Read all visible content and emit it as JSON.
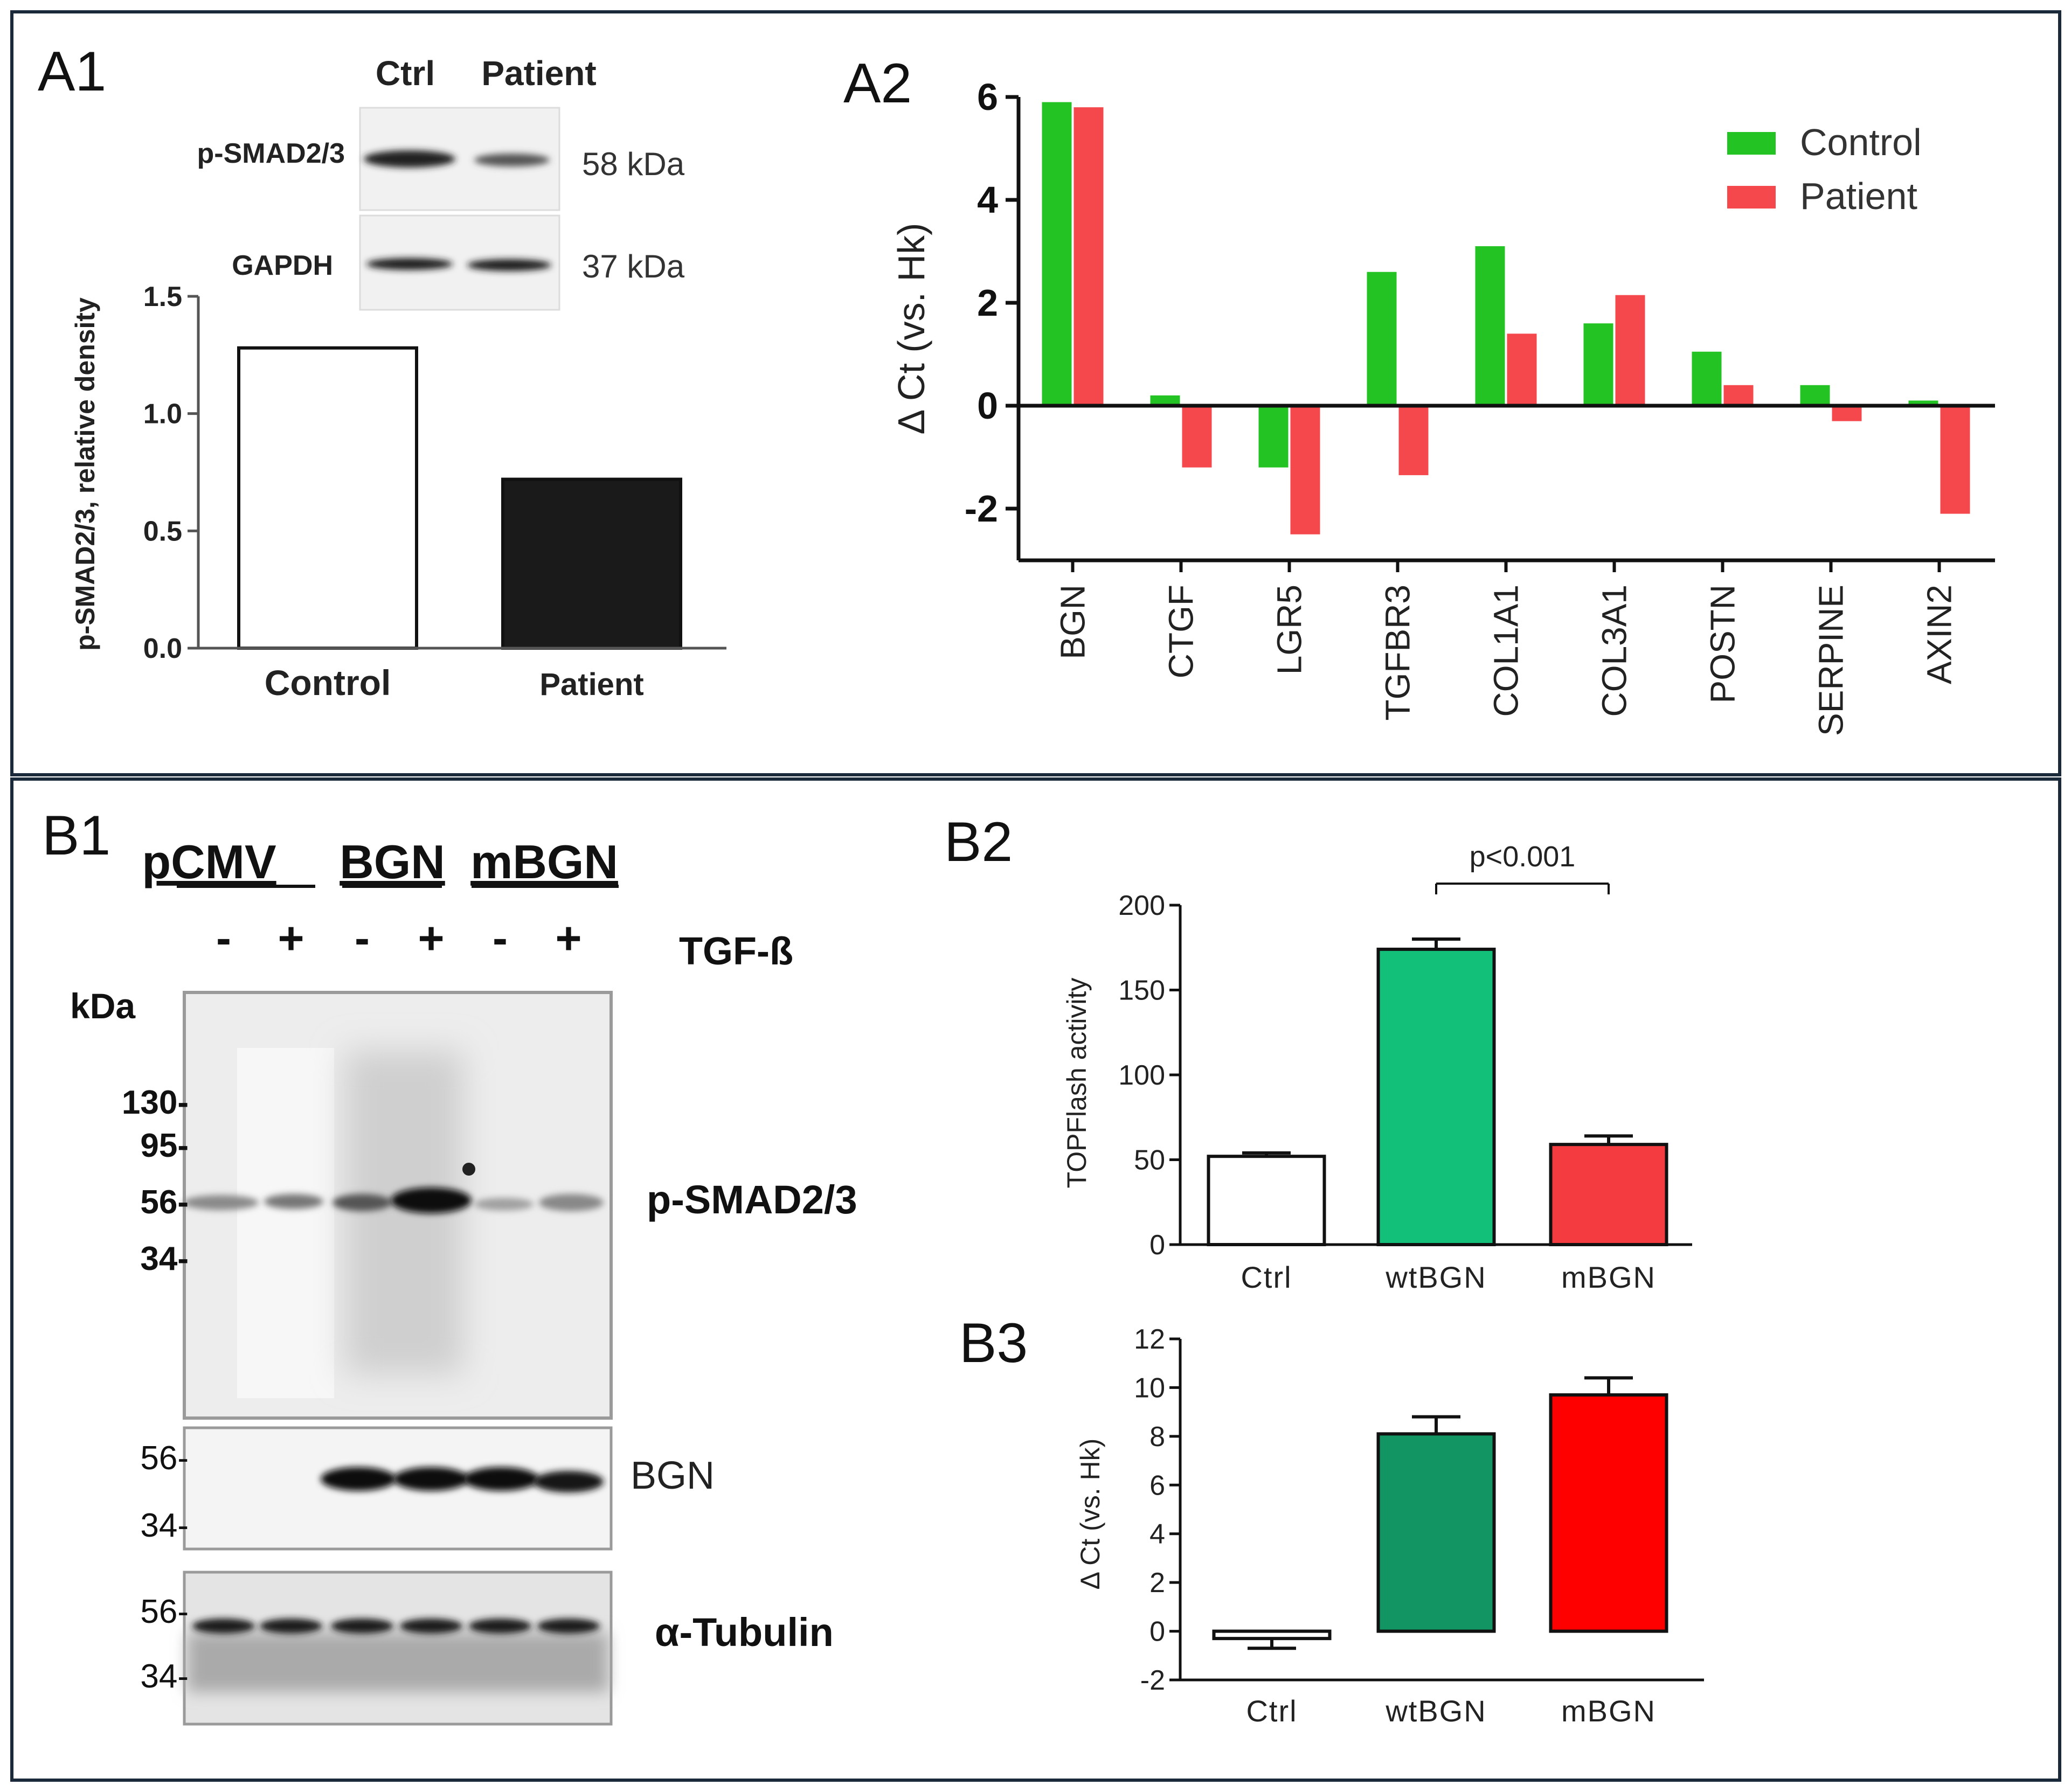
{
  "panels": {
    "a1": "A1",
    "a2": "A2",
    "b1": "B1",
    "b2": "B2",
    "b3": "B3"
  },
  "a1_blot": {
    "lanes": [
      "Ctrl",
      "Patient"
    ],
    "rows": [
      {
        "label": "p-SMAD2/3",
        "kda": "58 kDa"
      },
      {
        "label": "GAPDH",
        "kda": "37 kDa"
      }
    ]
  },
  "b1_blot": {
    "groups": [
      "pCMV",
      "BGN",
      "mBGN"
    ],
    "treatment_signs": [
      "-",
      "+",
      "-",
      "+",
      "-",
      "+"
    ],
    "treatment_label": "TGF-ß",
    "kda_label": "kDa",
    "psmad_markers": [
      "130-",
      "95-",
      "56-",
      "34-"
    ],
    "psmad_label": "p-SMAD2/3",
    "bgn_markers": [
      "56-",
      "34-"
    ],
    "bgn_label": "BGN",
    "tubulin_markers": [
      "56-",
      "34-"
    ],
    "tubulin_label": "α-Tubulin"
  },
  "chart_data": [
    {
      "id": "A1",
      "type": "bar",
      "categories": [
        "Control",
        "Patient"
      ],
      "values": [
        1.28,
        0.72
      ],
      "colors": [
        "#ffffff",
        "#1a1a1a"
      ],
      "ylabel": "p-SMAD2/3, relative density",
      "ylim": [
        0,
        1.5
      ],
      "yticks": [
        0.0,
        0.5,
        1.0,
        1.5
      ],
      "ytick_labels": [
        "0.0",
        "0.5",
        "1.0",
        "1.5"
      ],
      "grid": false
    },
    {
      "id": "A2",
      "type": "bar",
      "categories": [
        "BGN",
        "CTGF",
        "LGR5",
        "TGFBR3",
        "COL1A1",
        "COL3A1",
        "POSTN",
        "SERPINE",
        "AXIN2"
      ],
      "series": [
        {
          "name": "Control",
          "color": "#22c322",
          "values": [
            5.9,
            0.2,
            -1.2,
            2.6,
            3.1,
            1.6,
            1.05,
            0.4,
            0.1
          ]
        },
        {
          "name": "Patient",
          "color": "#f5484d",
          "values": [
            5.8,
            -1.2,
            -2.5,
            -1.35,
            1.4,
            2.15,
            0.4,
            -0.3,
            -2.1
          ]
        }
      ],
      "ylabel": "Δ Ct (vs. Hk)",
      "ylim": [
        -3,
        6
      ],
      "yticks": [
        -2,
        0,
        2,
        4,
        6
      ],
      "ytick_labels": [
        "-2",
        "0",
        "2",
        "4",
        "6"
      ],
      "legend": "top-right",
      "grid": false
    },
    {
      "id": "B2",
      "type": "bar",
      "categories": [
        "Ctrl",
        "wtBGN",
        "mBGN"
      ],
      "values": [
        52,
        174,
        59
      ],
      "errors": [
        2,
        6,
        5
      ],
      "colors": [
        "#ffffff",
        "#12c07a",
        "#f43c40"
      ],
      "ylabel": "TOPFlash activity",
      "ylim": [
        0,
        200
      ],
      "yticks": [
        0,
        50,
        100,
        150,
        200
      ],
      "ytick_labels": [
        "0",
        "50",
        "100",
        "150",
        "200"
      ],
      "annotation": "p<0.001",
      "grid": false
    },
    {
      "id": "B3",
      "type": "bar",
      "categories": [
        "Ctrl",
        "wtBGN",
        "mBGN"
      ],
      "values": [
        -0.3,
        8.1,
        9.7
      ],
      "errors": [
        0.4,
        0.7,
        0.7
      ],
      "colors": [
        "#ffffff",
        "#139463",
        "#ff0000"
      ],
      "ylabel": "Δ Ct (vs. Hk)",
      "ylim": [
        -2,
        12
      ],
      "yticks": [
        -2,
        0,
        2,
        4,
        6,
        8,
        10,
        12
      ],
      "ytick_labels": [
        "-2",
        "0",
        "2",
        "4",
        "6",
        "8",
        "10",
        "12"
      ],
      "grid": false
    }
  ]
}
